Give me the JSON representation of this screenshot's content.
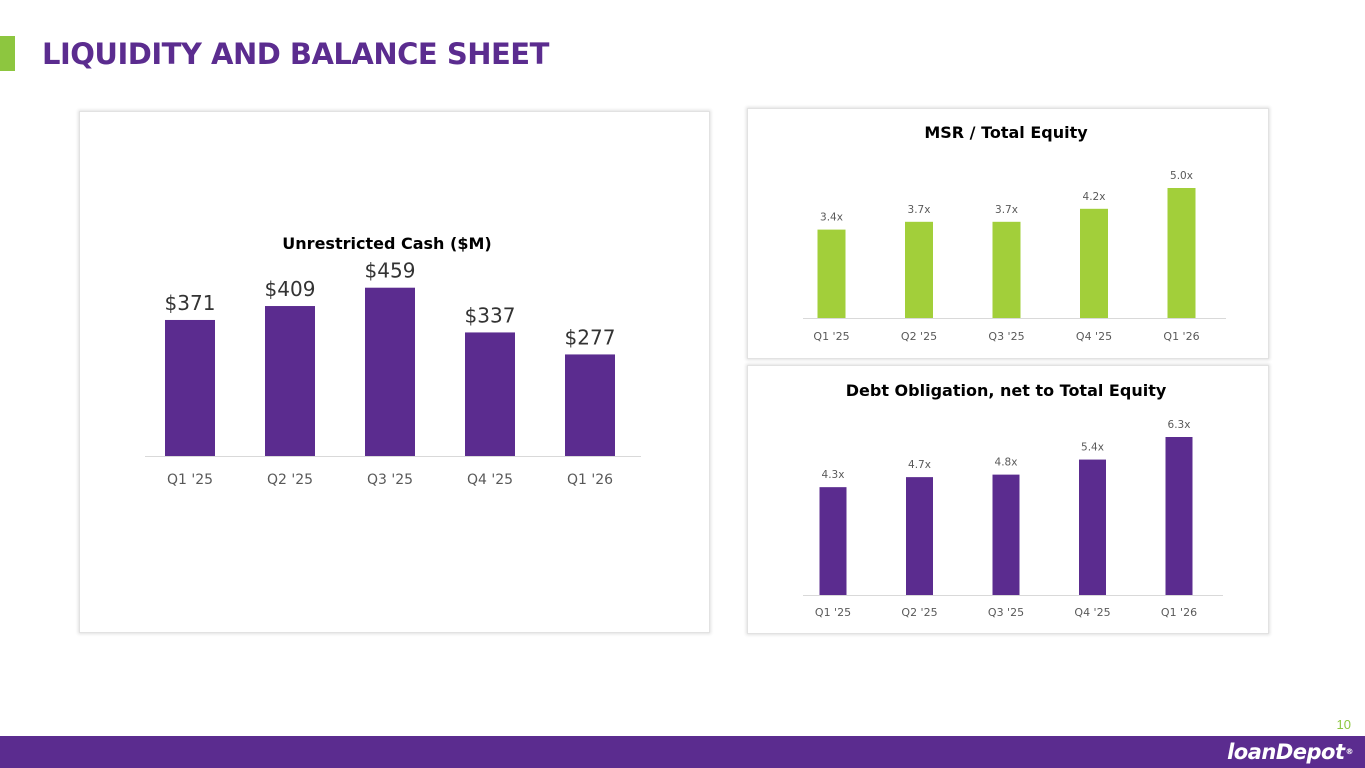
{
  "page": {
    "title": "LIQUIDITY AND BALANCE SHEET",
    "page_number": "10",
    "logo_text": "loanDepot",
    "logo_tm": "®"
  },
  "colors": {
    "brand_purple": "#5b2c8f",
    "brand_green": "#8dc63f",
    "bar_green": "#a2cf3a",
    "axis_line": "#d9d9d9",
    "tick_text": "#595959"
  },
  "chart_data": [
    {
      "id": "cash",
      "type": "bar",
      "title": "Unrestricted Cash ($M)",
      "categories": [
        "Q1 '25",
        "Q2 '25",
        "Q3 '25",
        "Q4 '25",
        "Q1 '26"
      ],
      "values": [
        371,
        409,
        459,
        337,
        277
      ],
      "labels": [
        "$371",
        "$409",
        "$459",
        "$337",
        "$277"
      ],
      "xlabel": "",
      "ylabel": "",
      "ylim": [
        0,
        600
      ],
      "grid": false,
      "color": "#5b2c8f"
    },
    {
      "id": "msr",
      "type": "bar",
      "title": "MSR / Total Equity",
      "categories": [
        "Q1 '25",
        "Q2 '25",
        "Q3 '25",
        "Q4 '25",
        "Q1 '26"
      ],
      "values": [
        3.4,
        3.7,
        3.7,
        4.2,
        5.0
      ],
      "labels": [
        "3.4x",
        "3.7x",
        "3.7x",
        "4.2x",
        "5.0x"
      ],
      "xlabel": "",
      "ylabel": "",
      "ylim": [
        0,
        5.0
      ],
      "grid": false,
      "color": "#a2cf3a"
    },
    {
      "id": "debt",
      "type": "bar",
      "title": "Debt Obligation, net to Total Equity",
      "categories": [
        "Q1 '25",
        "Q2 '25",
        "Q3 '25",
        "Q4 '25",
        "Q1 '26"
      ],
      "values": [
        4.3,
        4.7,
        4.8,
        5.4,
        6.3
      ],
      "labels": [
        "4.3x",
        "4.7x",
        "4.8x",
        "5.4x",
        "6.3x"
      ],
      "xlabel": "",
      "ylabel": "",
      "ylim": [
        0,
        6.3
      ],
      "grid": false,
      "color": "#5b2c8f"
    }
  ]
}
